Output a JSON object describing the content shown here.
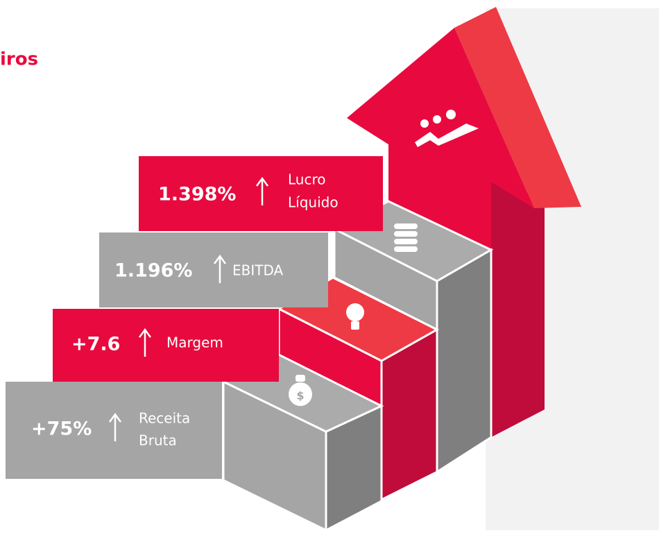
{
  "header": {
    "title": "iros"
  },
  "steps": [
    {
      "value": "1.398%",
      "label_lines": [
        "Lucro",
        "Líquido"
      ]
    },
    {
      "value": "1.196%",
      "label_lines": [
        "EBITDA"
      ]
    },
    {
      "value": "+7.6",
      "label_lines": [
        "Margem"
      ]
    },
    {
      "value": "+75%",
      "label_lines": [
        "Receita",
        "Bruta"
      ]
    }
  ]
}
